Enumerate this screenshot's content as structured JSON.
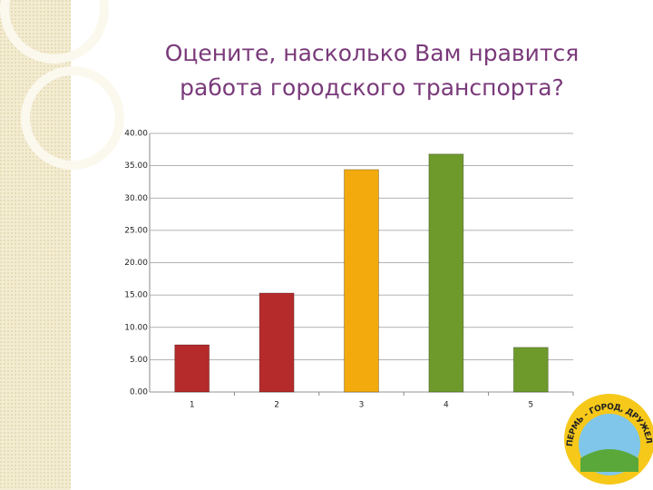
{
  "chart_data": {
    "type": "bar",
    "title": "Оцените, насколько Вам нравится работа городского транспорта?",
    "categories": [
      "1",
      "2",
      "3",
      "4",
      "5"
    ],
    "values": [
      7.3,
      15.3,
      34.4,
      36.8,
      6.9
    ],
    "colors": [
      "#b52a2a",
      "#b52a2a",
      "#f2aa0c",
      "#6e9a2c",
      "#6e9a2c"
    ],
    "ylim": [
      0,
      40
    ],
    "yticks": [
      {
        "value": 0,
        "label": "0.00"
      },
      {
        "value": 5,
        "label": "5.00"
      },
      {
        "value": 10,
        "label": "10.00"
      },
      {
        "value": 15,
        "label": "15.00"
      },
      {
        "value": 20,
        "label": "20.00"
      },
      {
        "value": 25,
        "label": "25.00"
      },
      {
        "value": 30,
        "label": "30.00"
      },
      {
        "value": 35,
        "label": "35.00"
      },
      {
        "value": 40,
        "label": "40.00"
      }
    ],
    "grid": true
  },
  "logo_text": "ПЕРМЬ - ГОРОД, ДРУЖЕЛЮБНЫЙ К ДЕТЯМ"
}
